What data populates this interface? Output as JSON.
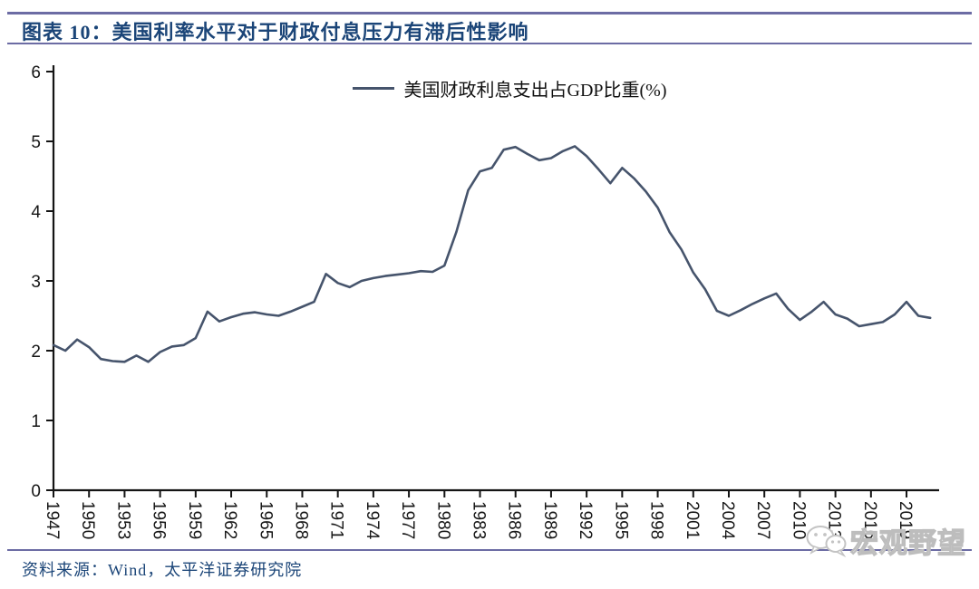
{
  "page": {
    "title": "图表 10：美国利率水平对于财政付息压力有滞后性影响",
    "source": "资料来源：Wind，太平洋证券研究院",
    "watermark": "宏观野望",
    "colors": {
      "title_blue": "#1B4578",
      "rule": "#6C6CA4",
      "line": "#46546C",
      "axis": "#141414",
      "watermark_gray": "#C4C4C4"
    }
  },
  "chart_data": {
    "type": "line",
    "title": "",
    "xlabel": "",
    "ylabel": "",
    "grid": false,
    "legend_position": "top-center",
    "ylim": [
      0,
      6
    ],
    "xlim": [
      1947,
      2022
    ],
    "yticks": [
      0,
      1,
      2,
      3,
      4,
      5,
      6
    ],
    "xticks": [
      1947,
      1950,
      1953,
      1956,
      1959,
      1962,
      1965,
      1968,
      1971,
      1974,
      1977,
      1980,
      1983,
      1986,
      1989,
      1992,
      1995,
      1998,
      2001,
      2004,
      2007,
      2010,
      2013,
      2016,
      2019
    ],
    "x": [
      1947,
      1948,
      1949,
      1950,
      1951,
      1952,
      1953,
      1954,
      1955,
      1956,
      1957,
      1958,
      1959,
      1960,
      1961,
      1962,
      1963,
      1964,
      1965,
      1966,
      1967,
      1968,
      1969,
      1970,
      1971,
      1972,
      1973,
      1974,
      1975,
      1976,
      1977,
      1978,
      1979,
      1980,
      1981,
      1982,
      1983,
      1984,
      1985,
      1986,
      1987,
      1988,
      1989,
      1990,
      1991,
      1992,
      1993,
      1994,
      1995,
      1996,
      1997,
      1998,
      1999,
      2000,
      2001,
      2002,
      2003,
      2004,
      2005,
      2006,
      2007,
      2008,
      2009,
      2010,
      2011,
      2012,
      2013,
      2014,
      2015,
      2016,
      2017,
      2018,
      2019,
      2020,
      2021
    ],
    "series": [
      {
        "name": "美国财政利息支出占GDP比重(%)",
        "values": [
          2.08,
          2.0,
          2.16,
          2.05,
          1.88,
          1.85,
          1.84,
          1.93,
          1.84,
          1.98,
          2.06,
          2.08,
          2.18,
          2.56,
          2.42,
          2.48,
          2.53,
          2.55,
          2.52,
          2.5,
          2.56,
          2.63,
          2.7,
          3.1,
          2.97,
          2.91,
          3.0,
          3.04,
          3.07,
          3.09,
          3.11,
          3.14,
          3.13,
          3.22,
          3.7,
          4.3,
          4.57,
          4.62,
          4.88,
          4.92,
          4.82,
          4.73,
          4.76,
          4.86,
          4.93,
          4.79,
          4.6,
          4.4,
          4.62,
          4.47,
          4.28,
          4.05,
          3.7,
          3.45,
          3.12,
          2.88,
          2.57,
          2.5,
          2.58,
          2.67,
          2.75,
          2.82,
          2.6,
          2.44,
          2.56,
          2.7,
          2.52,
          2.46,
          2.35,
          2.38,
          2.41,
          2.52,
          2.7,
          2.5,
          2.47
        ]
      }
    ]
  }
}
